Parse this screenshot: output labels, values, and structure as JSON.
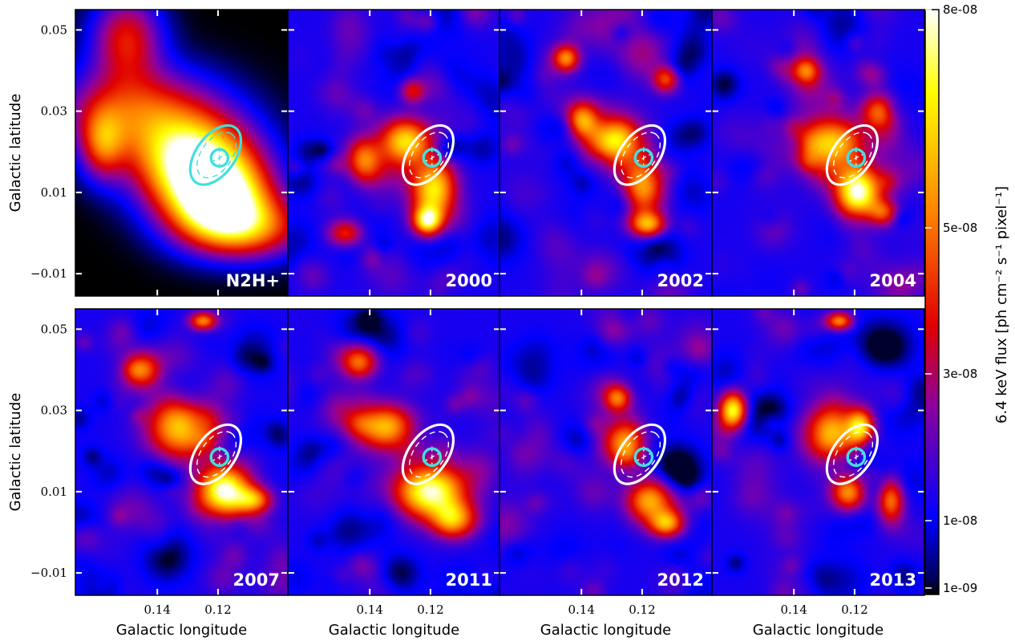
{
  "chart_data": {
    "type": "heatmap",
    "grid": false,
    "colormap": "gnuplot2-like (black → blue → purple → red → orange → yellow → white)",
    "x_axis": {
      "label": "Galactic longitude",
      "ticks": [
        "0.14",
        "0.12"
      ],
      "reversed": true
    },
    "y_axis": {
      "label": "Galactic latitude",
      "ticks": [
        "0.05",
        "0.03",
        "0.01",
        "−0.01"
      ]
    },
    "colorbar": {
      "label": "6.4 keV flux [ph cm⁻² s⁻¹ pixel⁻¹]",
      "ticks": [
        "8e-08",
        "5e-08",
        "3e-08",
        "1e-08",
        "1e-09"
      ]
    },
    "panels": [
      {
        "label": "N2H+",
        "region_color": "#40e0e0",
        "blobs": [
          {
            "x": 0.146,
            "y": 0.03,
            "sx": 18,
            "sy": 10,
            "v": 0.55
          },
          {
            "x": 0.128,
            "y": 0.018,
            "sx": 14,
            "sy": 10,
            "v": 0.95
          },
          {
            "x": 0.12,
            "y": 0.008,
            "sx": 12,
            "sy": 9,
            "v": 1.0
          },
          {
            "x": 0.11,
            "y": 0.001,
            "sx": 14,
            "sy": 7,
            "v": 0.55
          },
          {
            "x": 0.15,
            "y": 0.048,
            "sx": 8,
            "sy": 10,
            "v": 0.5
          },
          {
            "x": 0.158,
            "y": 0.022,
            "sx": 5,
            "sy": 8,
            "v": 0.45
          }
        ]
      },
      {
        "label": "2000",
        "region_color": "#ffffff",
        "blobs": [
          {
            "x": 0.128,
            "y": 0.023,
            "sx": 6,
            "sy": 5,
            "v": 0.55
          },
          {
            "x": 0.119,
            "y": 0.01,
            "sx": 5,
            "sy": 7,
            "v": 0.6
          },
          {
            "x": 0.121,
            "y": 0.003,
            "sx": 3,
            "sy": 3,
            "v": 0.55
          },
          {
            "x": 0.142,
            "y": 0.018,
            "sx": 4,
            "sy": 5,
            "v": 0.45
          },
          {
            "x": 0.126,
            "y": 0.035,
            "sx": 3,
            "sy": 3,
            "v": 0.4
          },
          {
            "x": 0.148,
            "y": 0.0,
            "sx": 4,
            "sy": 3,
            "v": 0.35
          }
        ]
      },
      {
        "label": "2002",
        "region_color": "#ffffff",
        "blobs": [
          {
            "x": 0.13,
            "y": 0.022,
            "sx": 6,
            "sy": 5,
            "v": 0.58
          },
          {
            "x": 0.12,
            "y": 0.011,
            "sx": 5,
            "sy": 7,
            "v": 0.68
          },
          {
            "x": 0.118,
            "y": 0.002,
            "sx": 4,
            "sy": 3,
            "v": 0.55
          },
          {
            "x": 0.145,
            "y": 0.043,
            "sx": 3,
            "sy": 3,
            "v": 0.5
          },
          {
            "x": 0.139,
            "y": 0.028,
            "sx": 4,
            "sy": 4,
            "v": 0.45
          },
          {
            "x": 0.112,
            "y": 0.038,
            "sx": 3,
            "sy": 3,
            "v": 0.4
          }
        ]
      },
      {
        "label": "2004",
        "region_color": "#ffffff",
        "blobs": [
          {
            "x": 0.128,
            "y": 0.022,
            "sx": 7,
            "sy": 6,
            "v": 0.6
          },
          {
            "x": 0.119,
            "y": 0.01,
            "sx": 5,
            "sy": 6,
            "v": 0.85
          },
          {
            "x": 0.112,
            "y": 0.03,
            "sx": 4,
            "sy": 4,
            "v": 0.42
          },
          {
            "x": 0.136,
            "y": 0.04,
            "sx": 3,
            "sy": 3,
            "v": 0.4
          },
          {
            "x": 0.11,
            "y": 0.005,
            "sx": 4,
            "sy": 3,
            "v": 0.4
          }
        ]
      },
      {
        "label": "2007",
        "region_color": "#ffffff",
        "blobs": [
          {
            "x": 0.133,
            "y": 0.026,
            "sx": 7,
            "sy": 7,
            "v": 0.6
          },
          {
            "x": 0.118,
            "y": 0.01,
            "sx": 6,
            "sy": 6,
            "v": 0.88
          },
          {
            "x": 0.145,
            "y": 0.04,
            "sx": 4,
            "sy": 4,
            "v": 0.45
          },
          {
            "x": 0.125,
            "y": 0.052,
            "sx": 3,
            "sy": 2,
            "v": 0.5
          },
          {
            "x": 0.108,
            "y": 0.008,
            "sx": 4,
            "sy": 3,
            "v": 0.45
          }
        ]
      },
      {
        "label": "2011",
        "region_color": "#ffffff",
        "blobs": [
          {
            "x": 0.135,
            "y": 0.026,
            "sx": 6,
            "sy": 5,
            "v": 0.55
          },
          {
            "x": 0.12,
            "y": 0.01,
            "sx": 8,
            "sy": 6,
            "v": 0.8
          },
          {
            "x": 0.112,
            "y": 0.003,
            "sx": 5,
            "sy": 4,
            "v": 0.55
          },
          {
            "x": 0.143,
            "y": 0.042,
            "sx": 4,
            "sy": 4,
            "v": 0.4
          }
        ]
      },
      {
        "label": "2012",
        "region_color": "#ffffff",
        "blobs": [
          {
            "x": 0.125,
            "y": 0.022,
            "sx": 5,
            "sy": 5,
            "v": 0.52
          },
          {
            "x": 0.118,
            "y": 0.008,
            "sx": 5,
            "sy": 5,
            "v": 0.55
          },
          {
            "x": 0.112,
            "y": 0.002,
            "sx": 4,
            "sy": 3,
            "v": 0.45
          },
          {
            "x": 0.128,
            "y": 0.033,
            "sx": 3,
            "sy": 3,
            "v": 0.42
          }
        ]
      },
      {
        "label": "2013",
        "region_color": "#ffffff",
        "blobs": [
          {
            "x": 0.16,
            "y": 0.03,
            "sx": 3,
            "sy": 4,
            "v": 0.72
          },
          {
            "x": 0.128,
            "y": 0.024,
            "sx": 6,
            "sy": 6,
            "v": 0.6
          },
          {
            "x": 0.118,
            "y": 0.026,
            "sx": 3,
            "sy": 4,
            "v": 0.55
          },
          {
            "x": 0.122,
            "y": 0.01,
            "sx": 4,
            "sy": 4,
            "v": 0.5
          },
          {
            "x": 0.108,
            "y": 0.008,
            "sx": 3,
            "sy": 5,
            "v": 0.5
          },
          {
            "x": 0.125,
            "y": 0.052,
            "sx": 3,
            "sy": 2,
            "v": 0.5
          }
        ]
      }
    ],
    "regions": {
      "outer_ellipse": {
        "cx": 0.1208,
        "cy": 0.0192,
        "a": 0.0111,
        "b": 0.0064,
        "angle_deg": -54
      },
      "inner_ellipse": {
        "cx": 0.1205,
        "cy": 0.0192,
        "a": 0.0085,
        "b": 0.005,
        "angle_deg": -54
      },
      "circle": {
        "cx": 0.1195,
        "cy": 0.0185,
        "r": 0.0028
      }
    }
  }
}
